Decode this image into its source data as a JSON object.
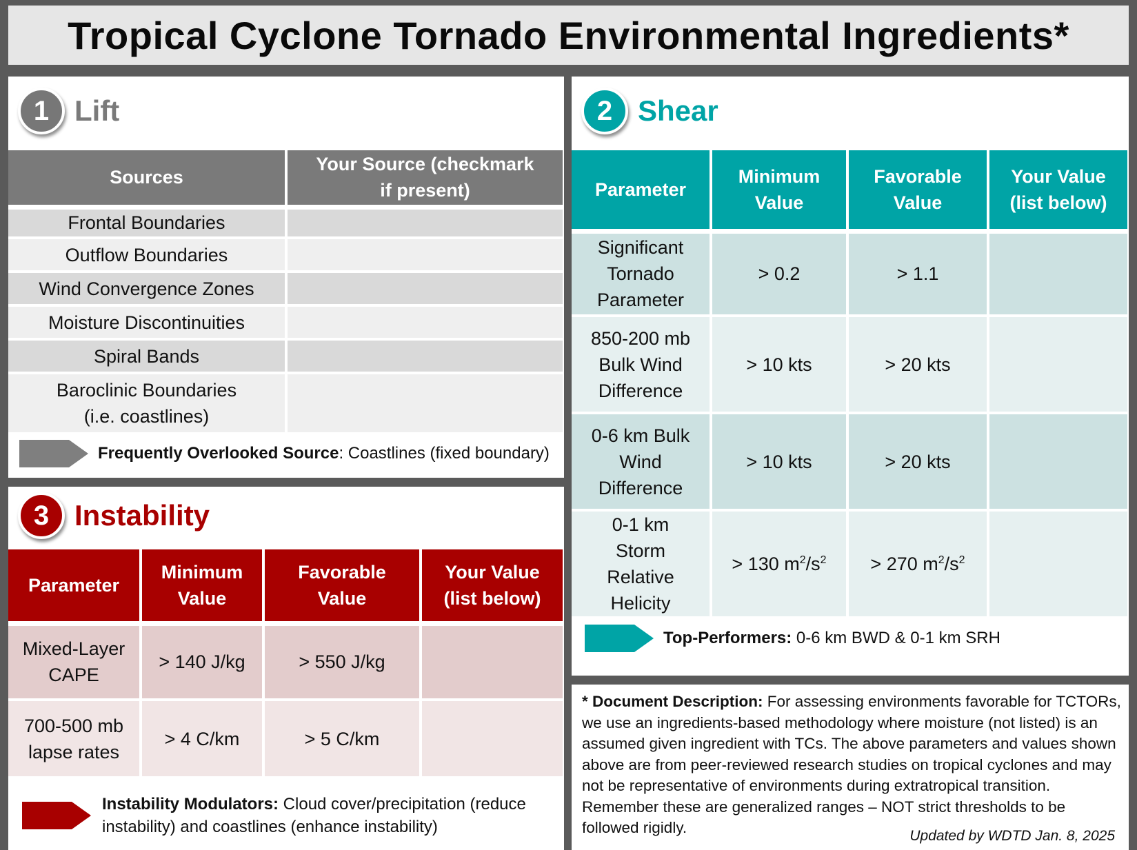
{
  "title": "Tropical Cyclone Tornado Environmental Ingredients*",
  "colors": {
    "lift": "#7a7a7a",
    "shear": "#00a4a6",
    "instability": "#a80000",
    "title_lift": "#7a7a7a"
  },
  "lift": {
    "number": "1",
    "title": "Lift",
    "headers": [
      "Sources",
      "Your Source (checkmark if present)"
    ],
    "rows": [
      [
        "Frontal Boundaries",
        ""
      ],
      [
        "Outflow Boundaries",
        ""
      ],
      [
        "Wind Convergence Zones",
        ""
      ],
      [
        "Moisture Discontinuities",
        ""
      ],
      [
        "Spiral Bands",
        ""
      ],
      [
        "Baroclinic Boundaries (i.e. coastlines)",
        ""
      ]
    ],
    "note_label": "Frequently Overlooked Source",
    "note_text": ": Coastlines (fixed boundary)"
  },
  "shear": {
    "number": "2",
    "title": "Shear",
    "headers": [
      "Parameter",
      "Minimum Value",
      "Favorable Value",
      "Your Value (list below)"
    ],
    "rows": [
      [
        "Significant Tornado Parameter",
        "> 0.2",
        "> 1.1",
        ""
      ],
      [
        "850-200 mb Bulk Wind Difference",
        "> 10 kts",
        "> 20 kts",
        ""
      ],
      [
        "0-6 km Bulk Wind Difference",
        "> 10 kts",
        "> 20 kts",
        ""
      ],
      [
        "0-1 km Storm Relative Helicity",
        "> 130 m",
        "> 270 m",
        ""
      ]
    ],
    "helicity_units": {
      "min_unit_mid": "/s",
      "fav_unit_mid": "/s",
      "sup": "2"
    },
    "note_label": "Top-Performers:",
    "note_text": " 0-6 km BWD & 0-1 km SRH"
  },
  "instability": {
    "number": "3",
    "title": "Instability",
    "headers": [
      "Parameter",
      "Minimum Value",
      "Favorable Value",
      "Your Value (list below)"
    ],
    "rows": [
      [
        "Mixed-Layer CAPE",
        "> 140 J/kg",
        "> 550 J/kg",
        ""
      ],
      [
        "700-500 mb lapse rates",
        "> 4 C/km",
        "> 5 C/km",
        ""
      ]
    ],
    "note_label": "Instability Modulators:",
    "note_text": " Cloud cover/precipitation (reduce instability) and coastlines (enhance instability)"
  },
  "description": {
    "label": "* Document Description:",
    "text": " For assessing environments favorable for TCTORs, we use an ingredients-based methodology where moisture (not listed) is an assumed given ingredient with TCs. The above parameters and values shown above are from peer-reviewed research studies on tropical cyclones and may not be representative of environments during extratropical transition. Remember these are generalized ranges – NOT strict thresholds to be followed rigidly.",
    "updated": "Updated by WDTD Jan. 8, 2025"
  }
}
